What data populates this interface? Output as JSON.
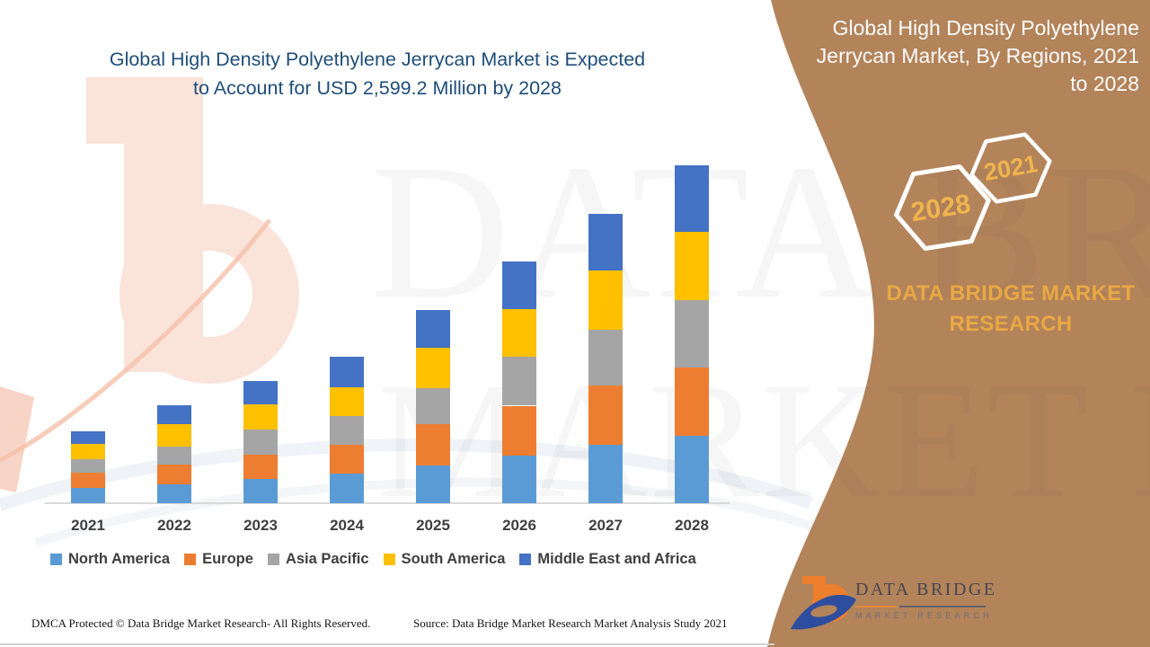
{
  "left_panel": {
    "title_lines": [
      "Global High Density Polyethylene Jerrycan Market is Expected",
      "to Account for USD 2,599.2 Million by 2028"
    ]
  },
  "chart_data": {
    "type": "bar",
    "stacked": true,
    "unit": "USD Million",
    "values_estimated": true,
    "anchor_note": "2028 total stated as USD 2,599.2 Million in title",
    "categories": [
      "2021",
      "2022",
      "2023",
      "2024",
      "2025",
      "2026",
      "2027",
      "2028"
    ],
    "series": [
      {
        "name": "North America",
        "color": "#5B9BD5",
        "values": [
          118,
          146,
          188,
          229,
          292,
          368,
          452,
          521
        ]
      },
      {
        "name": "Europe",
        "color": "#ED7D31",
        "values": [
          118,
          153,
          188,
          222,
          313,
          382,
          452,
          521
        ]
      },
      {
        "name": "Asia Pacific",
        "color": "#A5A5A5",
        "values": [
          104,
          139,
          188,
          222,
          278,
          375,
          431,
          521
        ]
      },
      {
        "name": "South America",
        "color": "#FFC000",
        "values": [
          118,
          167,
          195,
          222,
          313,
          368,
          452,
          528
        ]
      },
      {
        "name": "Middle East and Africa",
        "color": "#4472C4",
        "values": [
          97,
          146,
          181,
          229,
          292,
          368,
          438,
          508.2
        ]
      }
    ],
    "totals": [
      555,
      751,
      940,
      1124,
      1488,
      1861,
      2225,
      2599.2
    ],
    "title": "Global High Density Polyethylene Jerrycan Market is Expected to Account for USD 2,599.2 Million by 2028",
    "xlabel": "",
    "ylabel": "",
    "grid": false,
    "axis_value_labels_shown": false,
    "legend_position": "bottom"
  },
  "right_panel": {
    "title_lines": [
      "Global High Density Polyethylene",
      "Jerrycan Market, By Regions, 2021",
      "to 2028"
    ],
    "hexagons": [
      {
        "label": "2028"
      },
      {
        "label": "2021"
      }
    ],
    "brand_text_lines": [
      "DATA BRIDGE MARKET",
      "RESEARCH"
    ],
    "colors": {
      "background_brown": "#B3835A",
      "gold_accent": "#E8A843",
      "hexagon_year_gold": "#EFB44E",
      "title_white": "#FDFDFD"
    }
  },
  "logo": {
    "wordmark": "DATA BRIDGE",
    "subtext": "MARKET RESEARCH",
    "orange": "#EE7F2D",
    "blue": "#2E4D9E"
  },
  "watermarks": {
    "text_top": "DATA BRIDGE",
    "text_bottom": "MARKET RESEARCH"
  },
  "footer": {
    "dmca": "DMCA Protected © Data Bridge Market Research- All Rights Reserved.",
    "source": "Source: Data Bridge Market Research Market Analysis Study 2021"
  },
  "colors": {
    "left_title_blue": "#1F4E79",
    "axis_line": "#D9D9D9",
    "axis_label_gray": "#3F3F3F"
  }
}
